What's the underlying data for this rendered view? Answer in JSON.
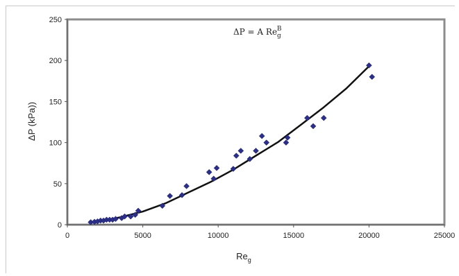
{
  "chart_data": {
    "type": "scatter",
    "title": "",
    "xlabel": "Re",
    "xlabel_sub": "g",
    "ylabel": "ΔP (kPa))",
    "xlim": [
      0,
      25000
    ],
    "ylim": [
      0,
      250
    ],
    "xticks": [
      0,
      5000,
      10000,
      15000,
      20000,
      25000
    ],
    "yticks": [
      0,
      50,
      100,
      150,
      200,
      250
    ],
    "grid": false,
    "legend": "none",
    "annotation": {
      "main": "ΔP = A Re",
      "sub": "g",
      "sup": "B"
    },
    "colors": {
      "marker": "#2b2f8a",
      "fit": "#111111",
      "plot_border": "#8c8c8c"
    },
    "series": [
      {
        "type": "scatter",
        "marker": "diamond",
        "points": [
          [
            1550,
            3
          ],
          [
            1800,
            3.5
          ],
          [
            2000,
            4
          ],
          [
            2200,
            5
          ],
          [
            2400,
            5
          ],
          [
            2600,
            6
          ],
          [
            2800,
            6
          ],
          [
            3000,
            6
          ],
          [
            3200,
            7
          ],
          [
            3600,
            8
          ],
          [
            3800,
            10
          ],
          [
            4200,
            10
          ],
          [
            4500,
            12
          ],
          [
            4700,
            17
          ],
          [
            6300,
            23
          ],
          [
            6800,
            35
          ],
          [
            7600,
            36
          ],
          [
            7900,
            47
          ],
          [
            9400,
            64
          ],
          [
            9700,
            56
          ],
          [
            9900,
            69
          ],
          [
            11000,
            68
          ],
          [
            11200,
            84
          ],
          [
            11500,
            90
          ],
          [
            12100,
            80
          ],
          [
            12500,
            90
          ],
          [
            12900,
            108
          ],
          [
            13200,
            100
          ],
          [
            14500,
            100
          ],
          [
            14600,
            106
          ],
          [
            15900,
            130
          ],
          [
            16300,
            120
          ],
          [
            17000,
            130
          ],
          [
            20000,
            194
          ],
          [
            20200,
            180
          ]
        ]
      },
      {
        "type": "line",
        "fit": true,
        "points": [
          [
            1500,
            3
          ],
          [
            2500,
            5.5
          ],
          [
            3500,
            9
          ],
          [
            5000,
            16
          ],
          [
            6500,
            26
          ],
          [
            8000,
            39
          ],
          [
            9500,
            52
          ],
          [
            11000,
            67
          ],
          [
            12500,
            84
          ],
          [
            14000,
            101
          ],
          [
            15500,
            122
          ],
          [
            17000,
            143
          ],
          [
            18500,
            166
          ],
          [
            20000,
            193
          ]
        ]
      }
    ]
  }
}
